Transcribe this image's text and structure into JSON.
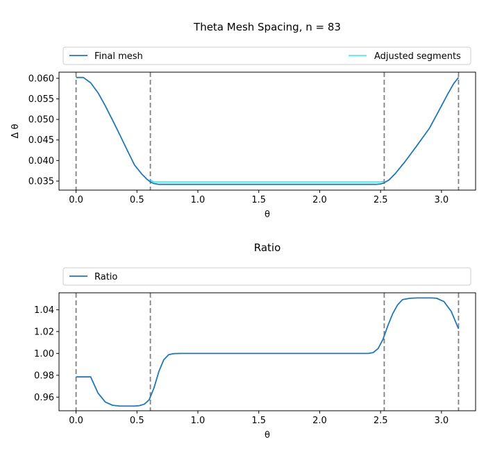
{
  "chart_data": [
    {
      "type": "line",
      "title": "Theta Mesh Spacing, n = 83",
      "xlabel": "θ",
      "ylabel": "Δ θ",
      "xlim": [
        -0.14,
        3.28
      ],
      "ylim": [
        0.0328,
        0.0615
      ],
      "xticks": [
        0.0,
        0.5,
        1.0,
        1.5,
        2.0,
        2.5,
        3.0
      ],
      "xtick_labels": [
        "0.0",
        "0.5",
        "1.0",
        "1.5",
        "2.0",
        "2.5",
        "3.0"
      ],
      "yticks": [
        0.035,
        0.04,
        0.045,
        0.05,
        0.055,
        0.06
      ],
      "ytick_labels": [
        "0.035",
        "0.040",
        "0.045",
        "0.050",
        "0.055",
        "0.060"
      ],
      "grid": false,
      "legend_placement": "above-plot",
      "vlines": [
        0.0,
        0.61,
        2.53,
        3.14
      ],
      "vline_color": "#808080",
      "series": [
        {
          "name": "Final mesh",
          "color": "#1f77b4",
          "x": [
            0.0,
            0.06,
            0.12,
            0.18,
            0.24,
            0.3,
            0.36,
            0.42,
            0.48,
            0.54,
            0.58,
            0.61,
            0.64,
            0.68,
            0.72,
            0.8,
            1.0,
            1.5,
            2.0,
            2.4,
            2.46,
            2.5,
            2.53,
            2.57,
            2.62,
            2.7,
            2.8,
            2.9,
            3.0,
            3.05,
            3.1,
            3.14
          ],
          "y": [
            0.0602,
            0.0602,
            0.0589,
            0.0565,
            0.0533,
            0.0498,
            0.0462,
            0.0425,
            0.0389,
            0.0367,
            0.0355,
            0.0348,
            0.0344,
            0.0342,
            0.0342,
            0.0342,
            0.0342,
            0.0342,
            0.0342,
            0.0342,
            0.0342,
            0.0343,
            0.0346,
            0.0353,
            0.0368,
            0.0397,
            0.0437,
            0.0478,
            0.0533,
            0.0561,
            0.0587,
            0.0602
          ]
        },
        {
          "name": "Adjusted segments",
          "color": "#00e5ee",
          "x": [
            0.61,
            0.64,
            0.7,
            1.0,
            1.5,
            2.0,
            2.45,
            2.5,
            2.53
          ],
          "y": [
            0.0352,
            0.0348,
            0.0348,
            0.0348,
            0.0348,
            0.0348,
            0.0348,
            0.0348,
            0.035
          ]
        }
      ]
    },
    {
      "type": "line",
      "title": "Ratio",
      "xlabel": "θ",
      "ylabel": "",
      "xlim": [
        -0.14,
        3.28
      ],
      "ylim": [
        0.9475,
        1.0555
      ],
      "xticks": [
        0.0,
        0.5,
        1.0,
        1.5,
        2.0,
        2.5,
        3.0
      ],
      "xtick_labels": [
        "0.0",
        "0.5",
        "1.0",
        "1.5",
        "2.0",
        "2.5",
        "3.0"
      ],
      "yticks": [
        0.96,
        0.98,
        1.0,
        1.02,
        1.04
      ],
      "ytick_labels": [
        "0.96",
        "0.98",
        "1.00",
        "1.02",
        "1.04"
      ],
      "grid": false,
      "legend_placement": "above-plot",
      "vlines": [
        0.0,
        0.61,
        2.53,
        3.14
      ],
      "vline_color": "#808080",
      "series": [
        {
          "name": "Ratio",
          "color": "#1f77b4",
          "x": [
            0.0,
            0.06,
            0.12,
            0.18,
            0.24,
            0.3,
            0.36,
            0.42,
            0.48,
            0.52,
            0.56,
            0.6,
            0.64,
            0.68,
            0.72,
            0.76,
            0.8,
            0.86,
            1.0,
            1.5,
            2.0,
            2.4,
            2.44,
            2.48,
            2.52,
            2.56,
            2.6,
            2.64,
            2.68,
            2.74,
            2.8,
            2.86,
            2.92,
            2.96,
            3.02,
            3.08,
            3.14
          ],
          "y": [
            0.9785,
            0.9785,
            0.9785,
            0.9637,
            0.9555,
            0.9525,
            0.9518,
            0.9518,
            0.9518,
            0.9522,
            0.9535,
            0.9575,
            0.9685,
            0.9835,
            0.9942,
            0.9988,
            0.9998,
            1.0,
            1.0,
            1.0,
            1.0,
            1.0,
            1.0008,
            1.0045,
            1.013,
            1.0255,
            1.0365,
            1.0445,
            1.0492,
            1.0505,
            1.0508,
            1.0508,
            1.0508,
            1.0505,
            1.0475,
            1.0385,
            1.0225
          ]
        }
      ]
    }
  ]
}
